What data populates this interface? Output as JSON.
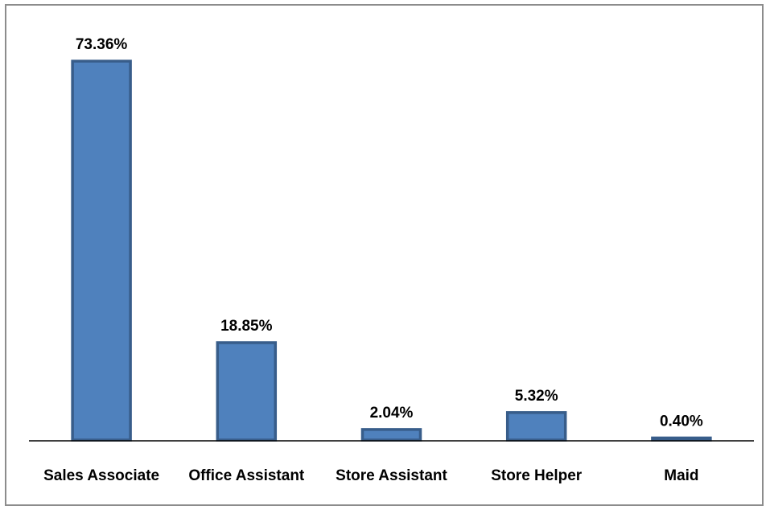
{
  "chart_data": {
    "type": "bar",
    "title": "",
    "xlabel": "",
    "ylabel": "",
    "categories": [
      "Sales Associate",
      "Office Assistant",
      "Store Assistant",
      "Store Helper",
      "Maid"
    ],
    "values": [
      73.36,
      18.85,
      2.04,
      5.32,
      0.4
    ],
    "value_labels": [
      "73.36%",
      "18.85%",
      "2.04%",
      "5.32%",
      "0.40%"
    ],
    "ylim": [
      0,
      73.36
    ],
    "grid": false,
    "legend": "none",
    "colors": {
      "bar_fill": "#4f81bd",
      "bar_stroke": "#385d8a",
      "axis": "#000000"
    }
  }
}
